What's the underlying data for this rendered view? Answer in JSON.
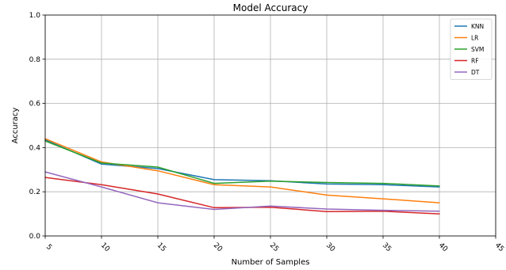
{
  "chart_data": {
    "type": "line",
    "title": "Model Accuracy",
    "xlabel": "Number of Samples",
    "ylabel": "Accuracy",
    "xlim": [
      5,
      45
    ],
    "ylim": [
      0.0,
      1.0
    ],
    "xticks": [
      5,
      10,
      15,
      20,
      25,
      30,
      35,
      40,
      45
    ],
    "yticks": [
      0.0,
      0.2,
      0.4,
      0.6,
      0.8,
      1.0
    ],
    "xtick_labels": [
      "5",
      "10",
      "15",
      "20",
      "25",
      "30",
      "35",
      "40",
      "45"
    ],
    "ytick_labels": [
      "0.0",
      "0.2",
      "0.4",
      "0.6",
      "0.8",
      "1.0"
    ],
    "grid": true,
    "legend_position": "top-right",
    "x": [
      5,
      10,
      15,
      20,
      25,
      30,
      35,
      40
    ],
    "series": [
      {
        "name": "KNN",
        "color": "#1f77b4",
        "values": [
          0.435,
          0.325,
          0.305,
          0.255,
          0.25,
          0.235,
          0.232,
          0.222
        ]
      },
      {
        "name": "LR",
        "color": "#ff7f0e",
        "values": [
          0.44,
          0.335,
          0.295,
          0.232,
          0.222,
          0.185,
          0.168,
          0.15
        ]
      },
      {
        "name": "SVM",
        "color": "#2ca02c",
        "values": [
          0.43,
          0.33,
          0.312,
          0.238,
          0.248,
          0.242,
          0.238,
          0.226
        ]
      },
      {
        "name": "RF",
        "color": "#d62728",
        "values": [
          0.265,
          0.232,
          0.19,
          0.128,
          0.13,
          0.11,
          0.112,
          0.1
        ]
      },
      {
        "name": "DT",
        "color": "#9467bd",
        "values": [
          0.29,
          0.222,
          0.15,
          0.12,
          0.135,
          0.122,
          0.116,
          0.112
        ]
      }
    ]
  }
}
